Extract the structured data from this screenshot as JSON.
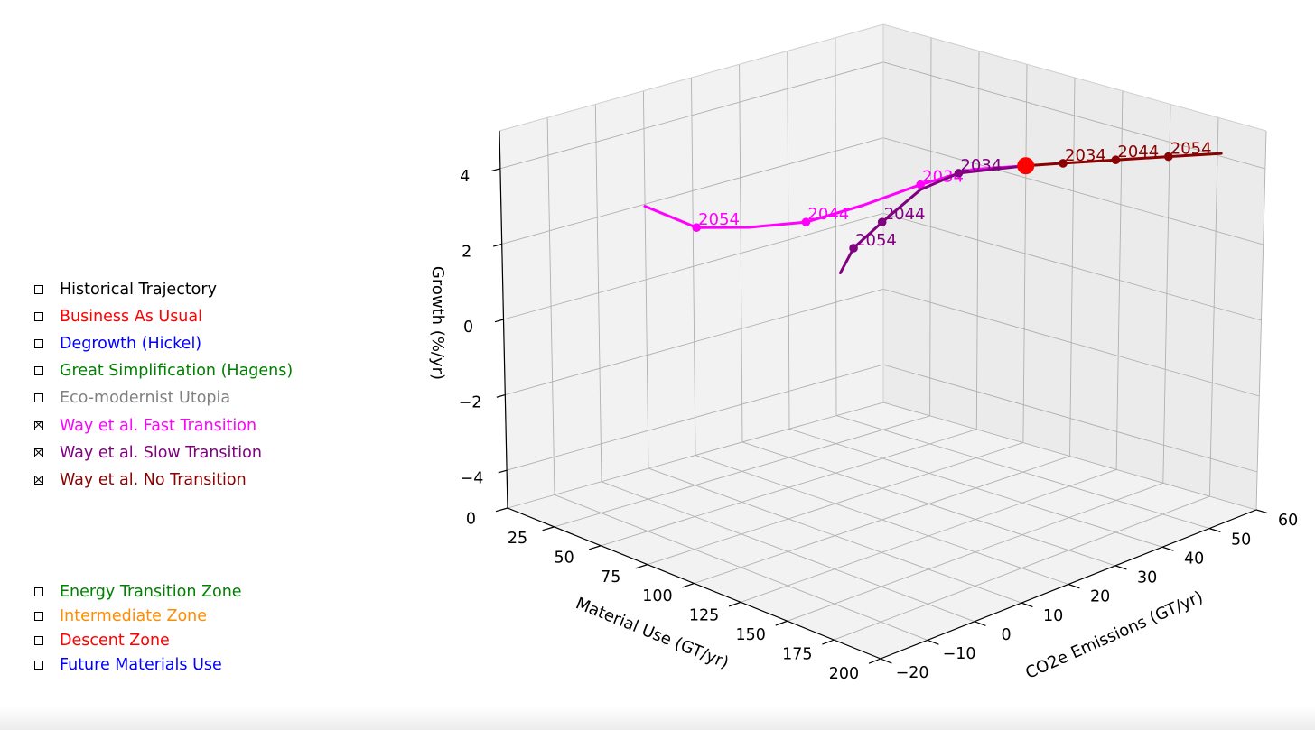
{
  "legend_main": [
    {
      "label": "Historical Trajectory",
      "color": "#000000",
      "checked": false
    },
    {
      "label": "Business As Usual",
      "color": "#ff0000",
      "checked": false
    },
    {
      "label": "Degrowth (Hickel)",
      "color": "#0000ff",
      "checked": false
    },
    {
      "label": "Great Simplification (Hagens)",
      "color": "#008000",
      "checked": false
    },
    {
      "label": "Eco-modernist Utopia",
      "color": "#808080",
      "checked": false
    },
    {
      "label": "Way et al. Fast Transition",
      "color": "#ff00ff",
      "checked": true
    },
    {
      "label": "Way et al. Slow Transition",
      "color": "#800080",
      "checked": true
    },
    {
      "label": "Way et al. No Transition",
      "color": "#8b0000",
      "checked": true
    }
  ],
  "legend_zones": [
    {
      "label": "Energy Transition Zone",
      "color": "#008000",
      "checked": false
    },
    {
      "label": "Intermediate Zone",
      "color": "#ff8c00",
      "checked": false
    },
    {
      "label": "Descent Zone",
      "color": "#ff0000",
      "checked": false
    },
    {
      "label": "Future Materials Use",
      "color": "#0000ff",
      "checked": false
    }
  ],
  "chart_data": {
    "type": "line3d",
    "xlabel": "Material Use (GT/yr)",
    "ylabel": "CO2e Emissions (GT/yr)",
    "zlabel": "Growth (%/yr)",
    "xlim": [
      0,
      200
    ],
    "ylim": [
      -20,
      60
    ],
    "zlim": [
      -5,
      5
    ],
    "xticks": [
      "0",
      "25",
      "50",
      "75",
      "100",
      "125",
      "150",
      "175",
      "200"
    ],
    "yticks": [
      "−20",
      "−10",
      "0",
      "10",
      "20",
      "30",
      "40",
      "50",
      "60"
    ],
    "zticks": [
      "−4",
      "−2",
      "0",
      "2",
      "4"
    ],
    "grid": true,
    "current_point": {
      "x": 100,
      "y": 50,
      "z": 3,
      "color": "#ff0000"
    },
    "series": [
      {
        "name": "Way et al. Fast Transition",
        "color": "#ff00ff",
        "points": [
          [
            100,
            50,
            3
          ],
          [
            90,
            43,
            3
          ],
          [
            80,
            36,
            2.7
          ],
          [
            70,
            28,
            2.3
          ],
          [
            60,
            20,
            2
          ],
          [
            50,
            12,
            2
          ],
          [
            40,
            5,
            2.1
          ],
          [
            28,
            -1,
            2.7
          ]
        ],
        "labels": [
          {
            "text": "2034",
            "point": [
              80,
              36,
              2.7
            ]
          },
          {
            "text": "2044",
            "point": [
              60,
              20,
              2
            ]
          },
          {
            "text": "2054",
            "point": [
              40,
              5,
              2.1
            ]
          }
        ]
      },
      {
        "name": "Way et al. Slow Transition",
        "color": "#800080",
        "points": [
          [
            100,
            50,
            3
          ],
          [
            95,
            45,
            3
          ],
          [
            90,
            40,
            3
          ],
          [
            85,
            34,
            2.7
          ],
          [
            80,
            28,
            2
          ],
          [
            75,
            24,
            1.4
          ],
          [
            73,
            22,
            0.8
          ]
        ],
        "labels": [
          {
            "text": "2034",
            "point": [
              90,
              40,
              3
            ]
          },
          {
            "text": "2044",
            "point": [
              80,
              28,
              2
            ]
          },
          {
            "text": "2054",
            "point": [
              75,
              24,
              1.4
            ]
          }
        ]
      },
      {
        "name": "Way et al. No Transition",
        "color": "#8b0000",
        "points": [
          [
            100,
            50,
            3
          ],
          [
            107,
            55,
            3
          ],
          [
            117,
            62,
            3
          ],
          [
            127,
            69,
            3
          ],
          [
            137,
            76,
            3
          ]
        ],
        "labels": [
          {
            "text": "2034",
            "point": [
              107,
              55,
              3
            ]
          },
          {
            "text": "2044",
            "point": [
              117,
              62,
              3
            ]
          },
          {
            "text": "2054",
            "point": [
              127,
              69,
              3
            ]
          }
        ]
      }
    ]
  }
}
